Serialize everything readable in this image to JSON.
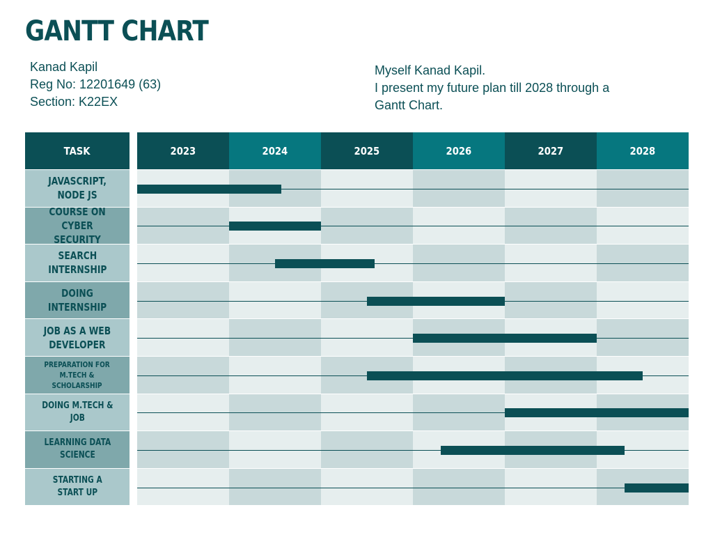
{
  "title": "GANTT CHART",
  "author": {
    "name": "Kanad Kapil",
    "reg": "Reg No: 12201649 (63)",
    "section": "Section: K22EX"
  },
  "intro": {
    "line1": "Myself Kanad Kapil.",
    "line2": "I present my future plan till 2028 through a",
    "line3": "Gantt Chart."
  },
  "colors": {
    "dark": "#0b4f55",
    "teal": "#06777f",
    "label_light": "#aac8cb",
    "label_dark": "#7fa8ab",
    "grid_light": "#e6eeee",
    "grid_dark": "#c8d9da"
  },
  "chart_data": {
    "type": "gantt",
    "title": "GANTT CHART",
    "task_header": "TASK",
    "years": [
      "2023",
      "2024",
      "2025",
      "2026",
      "2027",
      "2028"
    ],
    "x_range": [
      2023,
      2029
    ],
    "tasks": [
      {
        "label": "JAVASCRIPT,\nNODE JS",
        "start": 2023.0,
        "end": 2024.57
      },
      {
        "label": "COURSE ON CYBER\nSECURITY",
        "start": 2024.0,
        "end": 2025.0
      },
      {
        "label": "SEARCH\nINTERNSHIP",
        "start": 2024.5,
        "end": 2025.58
      },
      {
        "label": "DOING INTERNSHIP",
        "start": 2025.5,
        "end": 2027.0
      },
      {
        "label": "JOB AS A WEB\nDEVELOPER",
        "start": 2026.0,
        "end": 2028.0
      },
      {
        "label": "PREPARATION FOR\nM.TECH &\nSCHOLARSHIP",
        "start": 2025.5,
        "end": 2028.5
      },
      {
        "label": "DOING M.TECH &\nJOB",
        "start": 2027.0,
        "end": 2029.0
      },
      {
        "label": "LEARNING  DATA\nSCIENCE",
        "start": 2026.3,
        "end": 2028.3
      },
      {
        "label": "STARTING A\nSTART UP",
        "start": 2028.3,
        "end": 2029.0
      }
    ]
  }
}
